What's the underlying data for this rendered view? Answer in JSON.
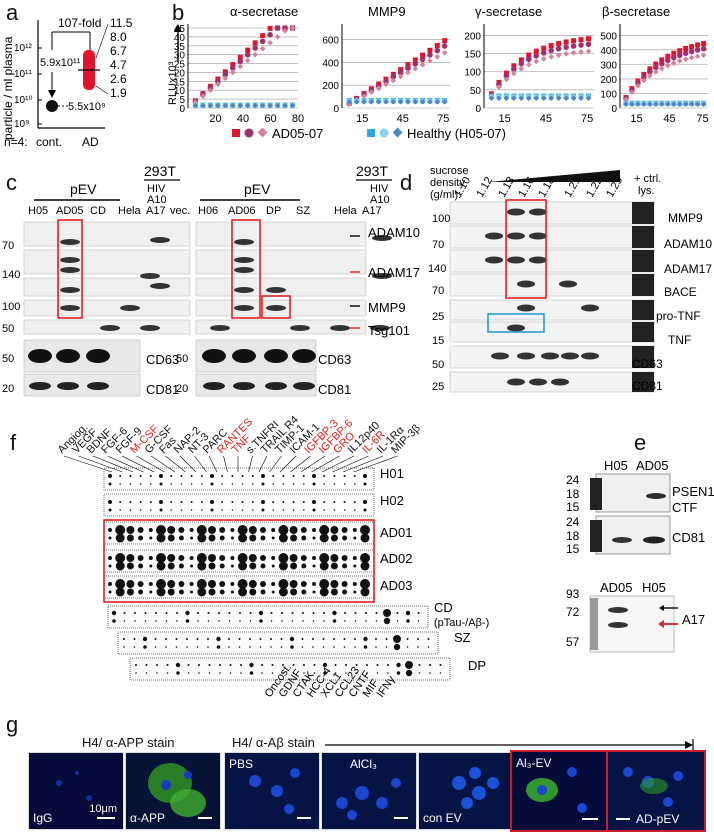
{
  "panels": {
    "a": {
      "letter": "a",
      "ylabel": "particle / ml plasma",
      "fold": "107-fold",
      "ticks": [
        "10¹²",
        "10¹¹",
        "10¹⁰",
        "10⁹"
      ],
      "cont_value": "5.5x10⁹",
      "ad_value": "5.9x10¹¹",
      "ad_points": [
        "11.5",
        "8.0",
        "6.7",
        "4.7",
        "2.6",
        "1.9"
      ],
      "n_label": "n=4:",
      "xcats": [
        "cont.",
        "AD"
      ]
    },
    "b": {
      "letter": "b",
      "ylabel": "RLUx10³",
      "titles": [
        "α-secretase",
        "MMP9",
        "γ-secretase",
        "β-secretase"
      ],
      "legend_ad": "AD05-07",
      "legend_healthy": "Healthy (H05-07)",
      "colors": {
        "ad1": "#e0142c",
        "ad2": "#a0306e",
        "ad3": "#d8809c",
        "h1": "#2aa8e8",
        "h2": "#8cd2f0",
        "h3": "#4a86c8"
      }
    },
    "c": {
      "letter": "c",
      "left": {
        "pev": "pEV",
        "lanes": [
          "H05",
          "AD05",
          "CD",
          "Hela",
          "A17",
          "vec."
        ],
        "cell": "293T",
        "hiv": "HIV",
        "a10": "A10"
      },
      "right": {
        "pev": "pEV",
        "lanes": [
          "H06",
          "AD06",
          "DP",
          "SZ",
          "Hela",
          "A17"
        ],
        "cell": "293T",
        "hiv": "HIV",
        "a10": "A10"
      },
      "mw_top": [
        "70",
        "140",
        "100",
        "50"
      ],
      "mw_bottom": [
        "50",
        "20"
      ],
      "markers": [
        "ADAM10",
        "ADAM17",
        "MMP9",
        "Tsg101"
      ],
      "bottom_markers": [
        "CD63",
        "CD81"
      ]
    },
    "d": {
      "letter": "d",
      "sucrose": "sucrose",
      "density": "density",
      "units": "(g/ml):",
      "fractions": [
        "1.10",
        "1.12",
        "1.13",
        "1.16",
        "1.18",
        "1.21",
        "1.22",
        "1.25"
      ],
      "ctrl": "+ ctrl.",
      "lys": "lys.",
      "mw": [
        "100",
        "70",
        "140",
        "70",
        "25",
        "15",
        "50",
        "25"
      ],
      "markers": [
        "MMP9",
        "ADAM10",
        "ADAM17",
        "BACE",
        "pro-TNF",
        "TNF",
        "CD63",
        "CD81"
      ]
    },
    "e": {
      "letter": "e",
      "lanes_top": [
        "H05",
        "AD05"
      ],
      "mw_top": [
        "24",
        "18",
        "15",
        "24",
        "18",
        "15"
      ],
      "psen": "PSEN1",
      "ctf": "CTF",
      "cd81": "CD81",
      "lanes_bottom": [
        "AD05",
        "H05"
      ],
      "mw_bottom": [
        "93",
        "72",
        "57"
      ],
      "a17": "A17"
    },
    "f": {
      "letter": "f",
      "cytokines_top": [
        "Angiog.",
        "VEGF",
        "BDNF",
        "FGF-6",
        "FGF-9",
        "M-CSF",
        "G-CSF",
        "Fas",
        "NAP-2",
        "NT-3",
        "PARC",
        "RANTES",
        "TNF",
        "s.TNFRI",
        "TRAIL R4",
        "TIMP-1",
        "ICAM-1",
        "IGFBP-3",
        "IGFBP-6",
        "GRO",
        "IL12p40",
        "IL-6R",
        "IL-1Rα",
        "MIP-3β"
      ],
      "red_cytokines": [
        "M-CSF",
        "RANTES",
        "TNF",
        "IGFBP-3",
        "IGFBP-6",
        "GRO",
        "IL-6R"
      ],
      "samples": [
        "H01",
        "H02",
        "AD01",
        "AD02",
        "AD03"
      ],
      "cd": "CD",
      "cd_sub": "(pTau-/Aβ-)",
      "sz": "SZ",
      "dp": "DP",
      "cytokines_bottom": [
        "Oncost.",
        "GDNF",
        "CTAK",
        "HCC-4",
        "XCL1",
        "CCL23",
        "CNTF",
        "MIF",
        "IFNγ"
      ]
    },
    "g": {
      "letter": "g",
      "app_title": "H4/ α-APP stain",
      "ab_title": "H4/ α-Aβ stain",
      "tiles": [
        "IgG",
        "α-APP",
        "PBS",
        "AlCl₃",
        "con EV",
        "Al₃-EV",
        "AD-pEV"
      ],
      "scale": "10μm"
    }
  }
}
